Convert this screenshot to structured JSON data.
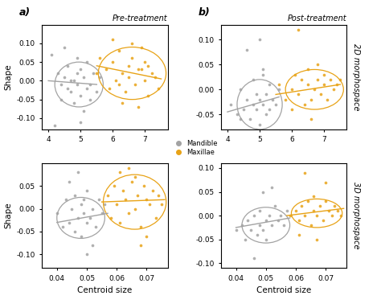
{
  "chart_data": [
    {
      "type": "scatter",
      "title": "Pre-treatment",
      "panel_label": "a)",
      "y_label": "Shape",
      "legend": "center",
      "xlim": [
        3.8,
        7.7
      ],
      "xticks": [
        4,
        5,
        6,
        7
      ],
      "ylim": [
        -0.13,
        0.15
      ],
      "yticks": [
        {
          "value": -0.1,
          "label": "-0.10"
        },
        -0.05,
        {
          "value": 0,
          "label": "0.00"
        },
        0.05,
        {
          "value": 0.1,
          "label": "0.10"
        }
      ],
      "series": [
        {
          "name": "Mandible",
          "color": "#a3a3a3",
          "marker": "circle",
          "x": [
            4.1,
            4.3,
            4.4,
            4.5,
            4.6,
            4.6,
            4.7,
            4.8,
            4.8,
            4.9,
            4.9,
            5.0,
            5.0,
            5.1,
            5.1,
            5.2,
            5.2,
            5.3,
            5.3,
            5.4,
            5.5,
            4.2,
            4.5,
            4.7,
            5.0,
            5.6,
            4.9,
            4.4
          ],
          "values": [
            0.07,
            0.02,
            -0.05,
            0.01,
            -0.02,
            0.04,
            -0.03,
            0.0,
            -0.06,
            0.02,
            -0.01,
            -0.04,
            0.03,
            0.01,
            -0.08,
            -0.02,
            0.05,
            -0.01,
            -0.05,
            0.02,
            -0.03,
            -0.12,
            0.09,
            0.0,
            -0.11,
            0.01,
            0.06,
            -0.01
          ],
          "trend": {
            "x": [
              4.0,
              5.5
            ],
            "y": [
              0.0,
              -0.01
            ]
          },
          "ellipse": {
            "center": [
              4.95,
              -0.01
            ],
            "width": 1.5,
            "height": 0.12
          }
        },
        {
          "name": "Maxillae",
          "color": "#e8a317",
          "marker": "circle",
          "x": [
            5.6,
            5.8,
            5.9,
            6.0,
            6.1,
            6.2,
            6.3,
            6.4,
            6.5,
            6.5,
            6.6,
            6.7,
            6.8,
            6.9,
            7.0,
            7.0,
            7.1,
            7.2,
            7.3,
            7.4,
            6.3,
            6.6,
            6.8,
            7.1,
            5.5,
            6.0,
            6.9,
            6.2
          ],
          "values": [
            0.06,
            0.03,
            -0.02,
            0.05,
            0.0,
            0.08,
            0.02,
            -0.03,
            0.04,
            0.01,
            0.06,
            -0.01,
            0.03,
            0.09,
            0.0,
            0.05,
            -0.04,
            0.02,
            0.01,
            -0.02,
            -0.06,
            0.1,
            -0.07,
            0.04,
            0.02,
            0.11,
            0.03,
            -0.01
          ],
          "trend": {
            "x": [
              5.5,
              7.5
            ],
            "y": [
              0.04,
              0.005
            ]
          },
          "ellipse": {
            "center": [
              6.6,
              0.02
            ],
            "width": 2.1,
            "height": 0.14
          }
        }
      ]
    },
    {
      "type": "scatter",
      "title": "Post-treatment",
      "panel_label": "b)",
      "row_label": "2D morphospace",
      "xlim": [
        3.8,
        7.7
      ],
      "xticks": [
        4,
        5,
        6,
        7
      ],
      "ylim": [
        -0.08,
        0.13
      ],
      "yticks": [
        -0.05,
        {
          "value": 0,
          "label": "0.00"
        },
        0.05,
        {
          "value": 0.1,
          "label": "0.10"
        }
      ],
      "series": [
        {
          "name": "Mandible",
          "color": "#a3a3a3",
          "marker": "circle",
          "x": [
            4.1,
            4.3,
            4.4,
            4.5,
            4.6,
            4.7,
            4.8,
            4.8,
            4.9,
            4.9,
            5.0,
            5.0,
            5.1,
            5.1,
            5.2,
            5.2,
            5.3,
            5.3,
            5.4,
            5.5,
            4.6,
            5.0,
            4.9,
            5.1,
            4.4,
            5.6
          ],
          "values": [
            -0.03,
            -0.05,
            0.0,
            -0.04,
            -0.02,
            -0.06,
            -0.03,
            0.02,
            -0.04,
            -0.01,
            -0.07,
            -0.02,
            -0.03,
            0.04,
            -0.05,
            -0.01,
            -0.04,
            0.01,
            -0.02,
            -0.03,
            0.08,
            0.1,
            -0.08,
            0.03,
            -0.06,
            0.0
          ],
          "trend": {
            "x": [
              4.0,
              5.6
            ],
            "y": [
              -0.045,
              -0.015
            ]
          },
          "ellipse": {
            "center": [
              5.0,
              -0.03
            ],
            "width": 1.4,
            "height": 0.1
          }
        },
        {
          "name": "Maxillae",
          "color": "#e8a317",
          "marker": "circle",
          "x": [
            5.6,
            5.8,
            6.0,
            6.1,
            6.2,
            6.3,
            6.4,
            6.5,
            6.5,
            6.6,
            6.7,
            6.8,
            6.9,
            7.0,
            7.0,
            7.1,
            7.2,
            7.3,
            7.4,
            6.2,
            6.6,
            6.8,
            7.5,
            6.0
          ],
          "values": [
            0.01,
            -0.02,
            0.0,
            0.03,
            -0.01,
            0.02,
            -0.03,
            0.01,
            0.04,
            -0.02,
            0.0,
            0.02,
            -0.01,
            0.03,
            0.01,
            -0.02,
            0.02,
            0.0,
            0.01,
            0.12,
            -0.06,
            0.05,
            0.02,
            -0.04
          ],
          "trend": {
            "x": [
              5.5,
              7.5
            ],
            "y": [
              -0.01,
              0.01
            ]
          },
          "ellipse": {
            "center": [
              6.7,
              0.0
            ],
            "width": 1.8,
            "height": 0.08
          }
        }
      ]
    },
    {
      "type": "scatter",
      "y_label": "Shape",
      "x_label": "Centroid size",
      "xlim": [
        0.035,
        0.077
      ],
      "xticks": [
        0.04,
        0.05,
        0.06,
        0.07
      ],
      "ylim": [
        -0.13,
        0.1
      ],
      "yticks": [
        {
          "value": -0.1,
          "label": "-0.10"
        },
        -0.05,
        {
          "value": 0,
          "label": "0.00"
        },
        0.05
      ],
      "series": [
        {
          "name": "Mandible",
          "color": "#a3a3a3",
          "marker": "circle",
          "x": [
            0.04,
            0.042,
            0.043,
            0.044,
            0.045,
            0.046,
            0.046,
            0.047,
            0.048,
            0.048,
            0.049,
            0.05,
            0.05,
            0.051,
            0.052,
            0.053,
            0.054,
            0.055,
            0.056,
            0.047,
            0.05,
            0.044,
            0.052,
            0.049
          ],
          "values": [
            -0.01,
            -0.04,
            0.02,
            -0.03,
            0.0,
            -0.05,
            0.03,
            -0.02,
            0.01,
            -0.06,
            -0.01,
            -0.03,
            0.04,
            -0.02,
            0.0,
            -0.04,
            0.02,
            -0.01,
            0.01,
            0.08,
            -0.1,
            0.06,
            -0.08,
            0.02
          ],
          "trend": {
            "x": [
              0.04,
              0.057
            ],
            "y": [
              -0.03,
              -0.01
            ]
          },
          "ellipse": {
            "center": [
              0.048,
              -0.02
            ],
            "width": 0.016,
            "height": 0.09
          }
        },
        {
          "name": "Maxillae",
          "color": "#e8a317",
          "marker": "circle",
          "x": [
            0.057,
            0.058,
            0.059,
            0.06,
            0.061,
            0.062,
            0.063,
            0.064,
            0.065,
            0.066,
            0.067,
            0.068,
            0.069,
            0.07,
            0.071,
            0.072,
            0.073,
            0.074,
            0.075,
            0.064,
            0.068,
            0.061,
            0.07,
            0.066
          ],
          "values": [
            0.03,
            -0.02,
            0.05,
            0.01,
            -0.03,
            0.04,
            0.02,
            -0.01,
            0.06,
            0.0,
            0.03,
            -0.04,
            0.05,
            0.02,
            0.01,
            0.04,
            -0.02,
            0.03,
            0.01,
            0.09,
            -0.08,
            0.08,
            -0.06,
            0.07
          ],
          "trend": {
            "x": [
              0.055,
              0.076
            ],
            "y": [
              0.015,
              0.02
            ]
          },
          "ellipse": {
            "center": [
              0.066,
              0.015
            ],
            "width": 0.021,
            "height": 0.12
          }
        }
      ]
    },
    {
      "type": "scatter",
      "x_label": "Centroid size",
      "row_label": "3D morphospace",
      "xlim": [
        0.035,
        0.077
      ],
      "xticks": [
        0.04,
        0.05,
        0.06,
        0.07
      ],
      "ylim": [
        -0.11,
        0.11
      ],
      "yticks": [
        {
          "value": -0.1,
          "label": "-0.10"
        },
        -0.05,
        {
          "value": 0,
          "label": "0.00"
        },
        0.05,
        {
          "value": 0.1,
          "label": "0.10"
        }
      ],
      "series": [
        {
          "name": "Mandible",
          "color": "#a3a3a3",
          "marker": "circle",
          "x": [
            0.04,
            0.042,
            0.043,
            0.044,
            0.045,
            0.046,
            0.047,
            0.048,
            0.048,
            0.049,
            0.05,
            0.05,
            0.051,
            0.052,
            0.053,
            0.054,
            0.055,
            0.056,
            0.057,
            0.046,
            0.049,
            0.052
          ],
          "values": [
            -0.03,
            -0.02,
            -0.05,
            -0.01,
            -0.03,
            0.0,
            -0.04,
            -0.02,
            0.01,
            -0.03,
            -0.01,
            -0.05,
            0.0,
            -0.02,
            0.02,
            -0.01,
            0.0,
            -0.02,
            0.01,
            -0.09,
            0.05,
            0.06
          ],
          "trend": {
            "x": [
              0.04,
              0.058
            ],
            "y": [
              -0.025,
              -0.005
            ]
          },
          "ellipse": {
            "center": [
              0.05,
              -0.02
            ],
            "width": 0.016,
            "height": 0.075
          }
        },
        {
          "name": "Maxillae",
          "color": "#e8a317",
          "marker": "circle",
          "x": [
            0.058,
            0.06,
            0.061,
            0.062,
            0.063,
            0.064,
            0.065,
            0.066,
            0.066,
            0.067,
            0.068,
            0.069,
            0.07,
            0.071,
            0.072,
            0.073,
            0.074,
            0.075,
            0.063,
            0.067,
            0.07,
            0.061
          ],
          "values": [
            0.0,
            0.01,
            -0.01,
            0.02,
            0.0,
            0.03,
            -0.02,
            0.01,
            0.04,
            0.0,
            0.02,
            -0.01,
            0.03,
            0.01,
            0.0,
            0.02,
            0.01,
            0.0,
            0.09,
            -0.05,
            0.07,
            -0.04
          ],
          "trend": {
            "x": [
              0.057,
              0.076
            ],
            "y": [
              0.0,
              0.015
            ]
          },
          "ellipse": {
            "center": [
              0.067,
              0.005
            ],
            "width": 0.017,
            "height": 0.06
          }
        }
      ]
    }
  ]
}
